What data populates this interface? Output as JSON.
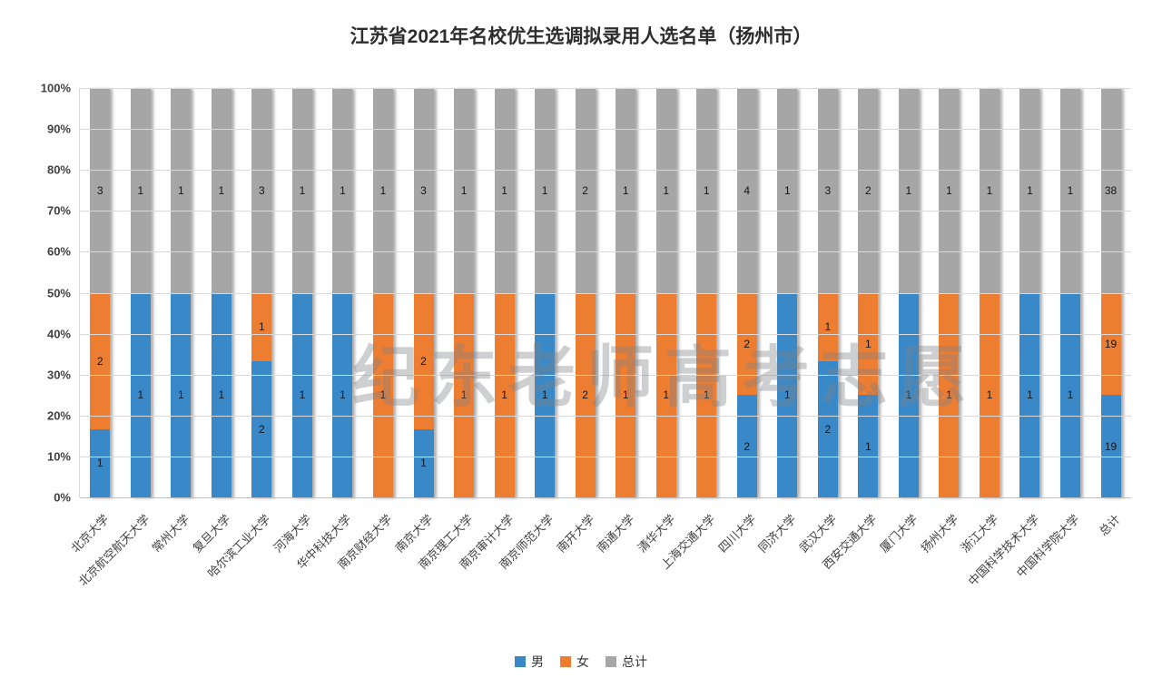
{
  "title": "江苏省2021年名校优生选调拟录用人选名单（扬州市）",
  "watermark": "纪东老师高考志愿",
  "legend": [
    {
      "label": "男",
      "color": "#3989c9"
    },
    {
      "label": "女",
      "color": "#ed7d31"
    },
    {
      "label": "总计",
      "color": "#a6a6a6"
    }
  ],
  "chart_data": {
    "type": "bar",
    "stacked": "100%",
    "title": "江苏省2021年名校优生选调拟录用人选名单（扬州市）",
    "xlabel": "",
    "ylabel": "",
    "ylim": [
      0,
      100
    ],
    "y_ticks": [
      "100%",
      "90%",
      "80%",
      "70%",
      "60%",
      "50%",
      "40%",
      "30%",
      "20%",
      "10%",
      "0%"
    ],
    "grid": "horizontal",
    "legend_position": "bottom",
    "categories": [
      "北京大学",
      "北京航空航天大学",
      "常州大学",
      "复旦大学",
      "哈尔滨工业大学",
      "河海大学",
      "华中科技大学",
      "南京财经大学",
      "南京大学",
      "南京理工大学",
      "南京审计大学",
      "南京师范大学",
      "南开大学",
      "南通大学",
      "清华大学",
      "上海交通大学",
      "四川大学",
      "同济大学",
      "武汉大学",
      "西安交通大学",
      "厦门大学",
      "扬州大学",
      "浙江大学",
      "中国科学技术大学",
      "中国科学院大学",
      "总计"
    ],
    "series": [
      {
        "name": "男",
        "color": "#3989c9",
        "values": [
          1,
          1,
          1,
          1,
          2,
          1,
          1,
          0,
          1,
          0,
          0,
          1,
          0,
          0,
          0,
          0,
          2,
          1,
          2,
          1,
          1,
          0,
          0,
          1,
          1,
          19
        ]
      },
      {
        "name": "女",
        "color": "#ed7d31",
        "values": [
          2,
          0,
          0,
          0,
          1,
          0,
          0,
          1,
          2,
          1,
          1,
          0,
          2,
          1,
          1,
          1,
          2,
          0,
          1,
          1,
          0,
          1,
          1,
          0,
          0,
          19
        ]
      },
      {
        "name": "总计",
        "color": "#a6a6a6",
        "values": [
          3,
          1,
          1,
          1,
          3,
          1,
          1,
          1,
          3,
          1,
          1,
          1,
          2,
          1,
          1,
          1,
          4,
          1,
          3,
          2,
          1,
          1,
          1,
          1,
          1,
          38
        ]
      }
    ]
  }
}
